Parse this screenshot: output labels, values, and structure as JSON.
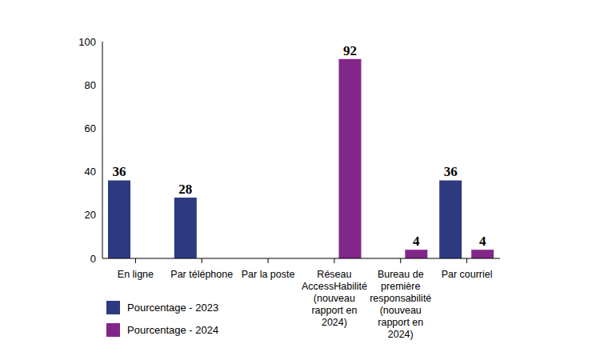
{
  "chart_data": {
    "type": "bar",
    "categories": [
      "En ligne",
      "Par téléphone",
      "Par la poste",
      "Réseau AccessHabilité (nouveau rapport en 2024)",
      "Bureau de première responsabilité (nouveau rapport en 2024)",
      "Par courriel"
    ],
    "series": [
      {
        "name": "Pourcentage - 2023",
        "color": "#2e3a80",
        "values": [
          36,
          28,
          0,
          0,
          0,
          36
        ]
      },
      {
        "name": "Pourcentage - 2024",
        "color": "#82278a",
        "values": [
          0,
          0,
          0,
          92,
          4,
          4
        ]
      }
    ],
    "ylim": [
      0,
      100
    ],
    "yticks": [
      0,
      20,
      40,
      60,
      80,
      100
    ],
    "grid": false,
    "data_labels": true
  }
}
